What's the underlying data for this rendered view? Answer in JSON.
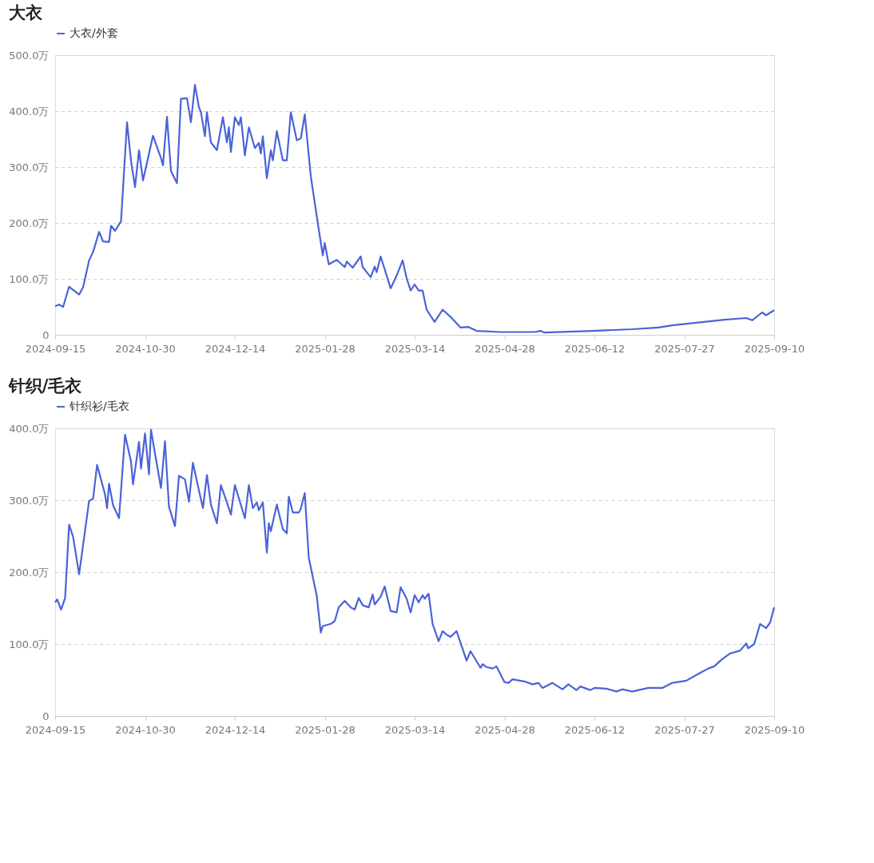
{
  "chart_data": [
    {
      "type": "line",
      "title": "大衣",
      "legend": "top left",
      "grid": "y",
      "xlim": [
        "2024-09-15",
        "2025-09-10"
      ],
      "xticks": [
        "2024-09-15",
        "2024-10-30",
        "2024-12-14",
        "2025-01-28",
        "2025-03-14",
        "2025-04-28",
        "2025-06-12",
        "2025-07-27",
        "2025-09-10"
      ],
      "ylim": [
        0,
        500
      ],
      "yticks": [
        {
          "value": 0,
          "label": "0"
        },
        {
          "value": 100,
          "label": "100.0万"
        },
        {
          "value": 200,
          "label": "200.0万"
        },
        {
          "value": 300,
          "label": "300.0万"
        },
        {
          "value": 400,
          "label": "400.0万"
        },
        {
          "value": 500,
          "label": "500.0万"
        }
      ],
      "series": [
        {
          "name": "大衣/外套",
          "color": "#4a63d8",
          "x": [
            "2024-09-15",
            "2024-09-17",
            "2024-09-19",
            "2024-09-22",
            "2024-09-27",
            "2024-09-29",
            "2024-10-02",
            "2024-10-04",
            "2024-10-07",
            "2024-10-09",
            "2024-10-12",
            "2024-10-13",
            "2024-10-15",
            "2024-10-18",
            "2024-10-21",
            "2024-10-23",
            "2024-10-25",
            "2024-10-27",
            "2024-10-29",
            "2024-10-31",
            "2024-11-03",
            "2024-11-07",
            "2024-11-08",
            "2024-11-10",
            "2024-11-12",
            "2024-11-15",
            "2024-11-17",
            "2024-11-20",
            "2024-11-22",
            "2024-11-24",
            "2024-11-26",
            "2024-11-27",
            "2024-11-29",
            "2024-11-30",
            "2024-12-02",
            "2024-12-05",
            "2024-12-08",
            "2024-12-10",
            "2024-12-11",
            "2024-12-12",
            "2024-12-14",
            "2024-12-16",
            "2024-12-17",
            "2024-12-19",
            "2024-12-21",
            "2024-12-24",
            "2024-12-26",
            "2024-12-27",
            "2024-12-28",
            "2024-12-30",
            "2025-01-01",
            "2025-01-02",
            "2025-01-04",
            "2025-01-07",
            "2025-01-09",
            "2025-01-11",
            "2025-01-14",
            "2025-01-16",
            "2025-01-18",
            "2025-01-21",
            "2025-01-24",
            "2025-01-27",
            "2025-01-28",
            "2025-01-30",
            "2025-02-03",
            "2025-02-07",
            "2025-02-08",
            "2025-02-11",
            "2025-02-15",
            "2025-02-16",
            "2025-02-20",
            "2025-02-22",
            "2025-02-23",
            "2025-02-25",
            "2025-03-02",
            "2025-03-05",
            "2025-03-08",
            "2025-03-10",
            "2025-03-12",
            "2025-03-14",
            "2025-03-16",
            "2025-03-18",
            "2025-03-20",
            "2025-03-24",
            "2025-03-28",
            "2025-04-01",
            "2025-04-06",
            "2025-04-10",
            "2025-04-14",
            "2025-04-26",
            "2025-05-13",
            "2025-05-16",
            "2025-05-18",
            "2025-06-11",
            "2025-07-01",
            "2025-07-14",
            "2025-07-21",
            "2025-08-03",
            "2025-08-16",
            "2025-08-27",
            "2025-08-30",
            "2025-09-04",
            "2025-09-06",
            "2025-09-10"
          ],
          "values": [
            51,
            54,
            50,
            86,
            72,
            85,
            133,
            148,
            184,
            167,
            166,
            195,
            186,
            203,
            380,
            311,
            264,
            330,
            276,
            308,
            356,
            316,
            303,
            390,
            293,
            271,
            422,
            423,
            380,
            447,
            407,
            398,
            355,
            398,
            344,
            330,
            389,
            344,
            371,
            327,
            389,
            375,
            389,
            321,
            371,
            334,
            343,
            324,
            355,
            280,
            330,
            312,
            364,
            312,
            312,
            398,
            348,
            351,
            394,
            284,
            212,
            142,
            164,
            126,
            134,
            121,
            131,
            120,
            140,
            121,
            103,
            122,
            112,
            140,
            83,
            106,
            133,
            101,
            79,
            90,
            79,
            79,
            45,
            23,
            45,
            32,
            13,
            14,
            7,
            5,
            5,
            7,
            4,
            7,
            10,
            13,
            17,
            22,
            27,
            30,
            26,
            40,
            35,
            44
          ]
        }
      ]
    },
    {
      "type": "line",
      "title": "针织/毛衣",
      "legend": "top left",
      "grid": "y",
      "xlim": [
        "2024-09-15",
        "2025-09-10"
      ],
      "xticks": [
        "2024-09-15",
        "2024-10-30",
        "2024-12-14",
        "2025-01-28",
        "2025-03-14",
        "2025-04-28",
        "2025-06-12",
        "2025-07-27",
        "2025-09-10"
      ],
      "ylim": [
        0,
        400
      ],
      "yticks": [
        0,
        {
          "value": 100,
          "label": "100.0万"
        },
        {
          "value": 200,
          "label": "200.0万"
        },
        {
          "value": 300,
          "label": "300.0万"
        },
        {
          "value": 400,
          "label": "400.0万"
        }
      ],
      "series": [
        {
          "name": "针织衫/毛衣",
          "color": "#4a63d8",
          "x": [
            "2024-09-15",
            "2024-09-16",
            "2024-09-18",
            "2024-09-20",
            "2024-09-22",
            "2024-09-24",
            "2024-09-27",
            "2024-09-28",
            "2024-10-02",
            "2024-10-04",
            "2024-10-06",
            "2024-10-10",
            "2024-10-11",
            "2024-10-12",
            "2024-10-14",
            "2024-10-17",
            "2024-10-20",
            "2024-10-23",
            "2024-10-24",
            "2024-10-27",
            "2024-10-28",
            "2024-10-30",
            "2024-11-01",
            "2024-11-02",
            "2024-11-04",
            "2024-11-07",
            "2024-11-09",
            "2024-11-11",
            "2024-11-14",
            "2024-11-16",
            "2024-11-19",
            "2024-11-21",
            "2024-11-23",
            "2024-11-25",
            "2024-11-28",
            "2024-11-30",
            "2024-12-02",
            "2024-12-05",
            "2024-12-07",
            "2024-12-10",
            "2024-12-12",
            "2024-12-14",
            "2024-12-19",
            "2024-12-21",
            "2024-12-23",
            "2024-12-25",
            "2024-12-26",
            "2024-12-28",
            "2024-12-30",
            "2024-12-31",
            "2025-01-01",
            "2025-01-04",
            "2025-01-07",
            "2025-01-09",
            "2025-01-10",
            "2025-01-12",
            "2025-01-15",
            "2025-01-16",
            "2025-01-18",
            "2025-01-20",
            "2025-01-24",
            "2025-01-26",
            "2025-01-27",
            "2025-01-31",
            "2025-02-02",
            "2025-02-04",
            "2025-02-07",
            "2025-02-10",
            "2025-02-12",
            "2025-02-14",
            "2025-02-16",
            "2025-02-19",
            "2025-02-21",
            "2025-02-22",
            "2025-02-25",
            "2025-02-27",
            "2025-03-02",
            "2025-03-05",
            "2025-03-07",
            "2025-03-10",
            "2025-03-12",
            "2025-03-14",
            "2025-03-16",
            "2025-03-18",
            "2025-03-19",
            "2025-03-21",
            "2025-03-23",
            "2025-03-26",
            "2025-03-28",
            "2025-03-30",
            "2025-04-01",
            "2025-04-04",
            "2025-04-09",
            "2025-04-11",
            "2025-04-16",
            "2025-04-17",
            "2025-04-19",
            "2025-04-22",
            "2025-04-24",
            "2025-04-28",
            "2025-04-30",
            "2025-05-02",
            "2025-05-08",
            "2025-05-12",
            "2025-05-15",
            "2025-05-17",
            "2025-05-22",
            "2025-05-27",
            "2025-05-30",
            "2025-06-03",
            "2025-06-05",
            "2025-06-10",
            "2025-06-12",
            "2025-06-18",
            "2025-06-23",
            "2025-06-26",
            "2025-07-01",
            "2025-07-09",
            "2025-07-16",
            "2025-07-21",
            "2025-07-28",
            "2025-08-04",
            "2025-08-08",
            "2025-08-11",
            "2025-08-15",
            "2025-08-19",
            "2025-08-24",
            "2025-08-27",
            "2025-08-28",
            "2025-08-31",
            "2025-09-03",
            "2025-09-06",
            "2025-09-08",
            "2025-09-10"
          ],
          "values": [
            158,
            162,
            148,
            164,
            266,
            249,
            197,
            217,
            299,
            302,
            349,
            308,
            289,
            323,
            293,
            275,
            391,
            354,
            322,
            381,
            344,
            393,
            336,
            398,
            365,
            317,
            382,
            291,
            264,
            334,
            329,
            298,
            352,
            326,
            289,
            335,
            294,
            268,
            321,
            297,
            280,
            321,
            275,
            321,
            289,
            297,
            286,
            297,
            227,
            268,
            257,
            294,
            260,
            254,
            305,
            283,
            283,
            288,
            310,
            220,
            167,
            116,
            125,
            128,
            132,
            151,
            160,
            151,
            148,
            164,
            154,
            151,
            169,
            155,
            166,
            180,
            146,
            144,
            179,
            163,
            144,
            168,
            158,
            168,
            163,
            170,
            128,
            104,
            118,
            113,
            110,
            118,
            77,
            90,
            67,
            72,
            68,
            66,
            69,
            47,
            46,
            51,
            48,
            44,
            46,
            39,
            46,
            37,
            44,
            36,
            41,
            36,
            39,
            38,
            34,
            37,
            34,
            39,
            39,
            46,
            49,
            60,
            66,
            69,
            79,
            87,
            91,
            101,
            94,
            100,
            128,
            122,
            130,
            151
          ]
        }
      ]
    }
  ]
}
